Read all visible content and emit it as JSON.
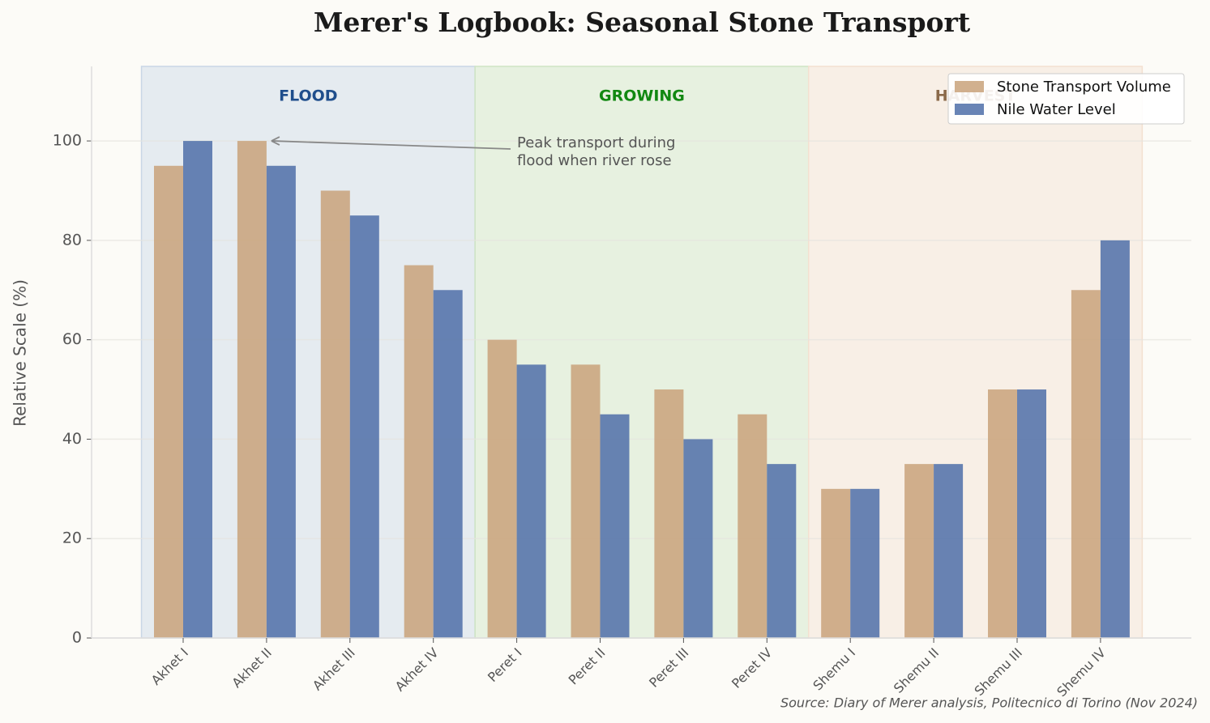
{
  "chart_data": {
    "type": "bar",
    "title": "Merer's Logbook: Seasonal Stone Transport",
    "y_label": "Relative Scale (%)",
    "source": "Source: Diary of Merer analysis, Politecnico di Torino (Nov 2024)",
    "categories": [
      "Akhet I",
      "Akhet II",
      "Akhet III",
      "Akhet IV",
      "Peret I",
      "Peret II",
      "Peret III",
      "Peret IV",
      "Shemu I",
      "Shemu II",
      "Shemu III",
      "Shemu IV"
    ],
    "series": [
      {
        "name": "Stone Transport Volume",
        "color": "#c9a27a",
        "values": [
          95,
          100,
          90,
          75,
          60,
          55,
          50,
          45,
          30,
          35,
          50,
          70
        ]
      },
      {
        "name": "Nile Water Level",
        "color": "#4f6ea8",
        "values": [
          100,
          95,
          85,
          70,
          55,
          45,
          40,
          35,
          30,
          35,
          50,
          80
        ]
      }
    ],
    "seasons": [
      {
        "name": "FLOOD",
        "from": 0,
        "to": 3,
        "color": "#c9d6e6",
        "text_color": "#1f4e8c"
      },
      {
        "name": "GROWING",
        "from": 4,
        "to": 7,
        "color": "#cfe5c4",
        "text_color": "#118811"
      },
      {
        "name": "HARVEST",
        "from": 8,
        "to": 11,
        "color": "#f3e0d0",
        "text_color": "#8b6a4a"
      }
    ],
    "annotation": {
      "text": [
        "Peak transport during",
        "flood when river rose"
      ],
      "category": 1,
      "value": 100
    },
    "ylim": [
      0,
      115
    ],
    "yticks": [
      0,
      20,
      40,
      60,
      80,
      100
    ],
    "grid": true,
    "legend": "upper right"
  }
}
